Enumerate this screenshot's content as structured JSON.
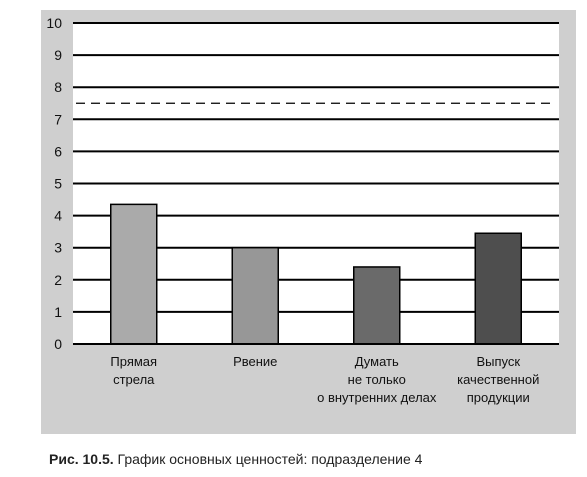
{
  "caption": {
    "label": "Рис. 10.5.",
    "text": "График основных ценностей: подразделение 4"
  },
  "chart_data": {
    "type": "bar",
    "categories": [
      [
        "Прямая",
        "стрела"
      ],
      [
        "Рвение"
      ],
      [
        "Думать",
        "не только",
        "о внутренних делах"
      ],
      [
        "Выпуск",
        "качественной",
        "продукции"
      ]
    ],
    "values": [
      4.35,
      3.0,
      2.4,
      3.45
    ],
    "colors": [
      "#aaaaaa",
      "#979797",
      "#6a6a6a",
      "#4e4e4e"
    ],
    "ylim": [
      0,
      10
    ],
    "yticks": [
      "0",
      "1",
      "2",
      "3",
      "4",
      "5",
      "6",
      "7",
      "8",
      "9",
      "10"
    ],
    "reference_line": {
      "value": 7.5,
      "style": "dashed"
    },
    "grid": true,
    "panel_color": "#cfcfcf",
    "plot_color": "#ffffff"
  }
}
